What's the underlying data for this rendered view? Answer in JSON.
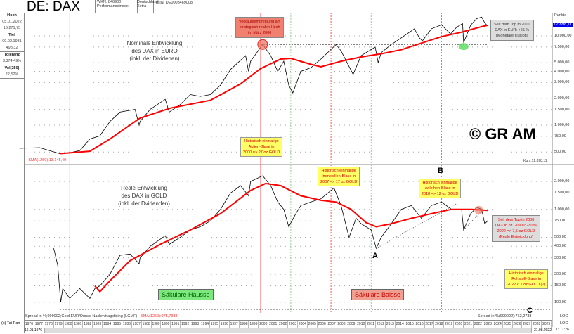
{
  "header": {
    "title": "DE: DAX",
    "wkn": "WKN: 846900",
    "type": "Performanceindex",
    "country": "Deutschland",
    "exchange": "Xetra",
    "isin": "ISIN: DE0008469008"
  },
  "side": {
    "hoch_label": "Hoch",
    "hoch_date": "05.01.2022",
    "hoch_value": "16.271,75",
    "tief_label": "Tief",
    "tief_date": "09.02.1981",
    "tief_value": "498,32",
    "toleranz_label": "Toleranz",
    "toleranz_value": "3.374,49%",
    "vol_label": "Vol(250)",
    "vol_value": "22,52%",
    "tai_pan": "(c) Tai-Pan"
  },
  "annotations": {
    "nominal": [
      "Nominale Entwicklung",
      "des DAX in EURO",
      "(inkl. der Dividenen)"
    ],
    "real": [
      "Reale Entwicklung",
      "des DAX in GOLD",
      "(inkl. der Dvidenden)"
    ],
    "sell": [
      "Verkaufsempfehlung am",
      "strategisch realen Hoch",
      "im März 2000"
    ],
    "top_eur": [
      "Seit dem Top in 2000",
      "DAX in EUR: +65 %",
      "(Monetäre Illusion)"
    ],
    "aktien": [
      "Historisch einmalige",
      "Aktien-Blase in",
      "2000 => 27 oz GOLD"
    ],
    "immo": [
      "Historisch einmalige",
      "Immobilien-Blase in",
      "2007 => 17 oz GOLD"
    ],
    "anleihen": [
      "Historisch einmalige",
      "Anleihen-Blase in",
      "2018 => 12 oz GOLD"
    ],
    "top_gold": [
      "Seit dem Top in 2000",
      "DAX in oz GOLD: -70 %",
      "2022 => 7,5 oz GOLD",
      "(Reale Entwicklung)"
    ],
    "rohstoff": [
      "Historisch einmalige",
      "Rohstoff-Blase in",
      "202? < 1 oz GOLD (?)"
    ],
    "copyright": "© GR AM",
    "hausse": "Säkulare Hausse",
    "baisse": "Säkulare Baisse",
    "A": "A",
    "B": "B",
    "C": "C",
    "sma_top": "- SMA(1250):13.145,49",
    "kurs": "Kurs:12.898,11",
    "spread_left": "Spread in %;999002;Gold EUR/Ounce Nachmittagsfixing (LGMF)",
    "sma_bottom": " - SMA(1250):975,7388",
    "spread_right": "Spread in %(999002):752,2738",
    "log1": "LOG",
    "log2": "LOG",
    "time": "T: 11:26",
    "date_start": "16.01.1976",
    "date_end": "31.08.2022",
    "punkte": "Punkte"
  },
  "chart_data": [
    {
      "type": "line",
      "title": "DAX nominal in EUR",
      "scale": "log",
      "yticks": [
        500,
        750,
        1000,
        1500,
        2000,
        3000,
        4000,
        5000,
        7500,
        10000
      ],
      "ytick_labels": [
        "500,00",
        "750,00",
        "1.000,00",
        "1.500,00",
        "2.000,00",
        "3.000,00",
        "4.000,00",
        "5.000,00",
        "7.500,00",
        "10.000,00"
      ],
      "current_label": "12.898,11",
      "series": [
        {
          "name": "DAX",
          "x": [
            1976,
            1978,
            1980,
            1981,
            1982,
            1983,
            1984,
            1985,
            1986,
            1987.5,
            1987.9,
            1988,
            1989,
            1990.5,
            1990.9,
            1992,
            1993,
            1994,
            1995,
            1996,
            1997,
            1998.5,
            1998.8,
            1999,
            2000.2,
            2001,
            2001.7,
            2002.3,
            2002.8,
            2003.2,
            2004,
            2005,
            2006,
            2007.5,
            2008,
            2009.2,
            2010,
            2011.4,
            2011.7,
            2012,
            2013,
            2014,
            2015.3,
            2015.8,
            2016.1,
            2017,
            2018,
            2018.9,
            2019.5,
            2020.1,
            2020.2,
            2020.9,
            2021.5,
            2022.0,
            2022.3,
            2022.6
          ],
          "values": [
            550,
            560,
            480,
            490,
            520,
            700,
            760,
            1100,
            1400,
            1500,
            1000,
            1100,
            1500,
            1950,
            1400,
            1700,
            2200,
            2100,
            2200,
            2800,
            4200,
            6000,
            4000,
            5200,
            8000,
            6000,
            4000,
            5200,
            2800,
            2300,
            4000,
            4400,
            5500,
            8000,
            6800,
            3700,
            6000,
            7500,
            5000,
            6500,
            8000,
            9500,
            12000,
            9500,
            8800,
            12000,
            13300,
            10500,
            12500,
            13700,
            8400,
            13200,
            15600,
            16270,
            14000,
            12898
          ]
        },
        {
          "name": "SMA(1250)",
          "x": [
            1980,
            1983,
            1985,
            1988,
            1991,
            1995,
            1998,
            2000,
            2002,
            2003,
            2005,
            2006,
            2008,
            2010,
            2012,
            2014,
            2016,
            2018,
            2020,
            2022,
            2022.6
          ],
          "values": [
            480,
            510,
            700,
            1200,
            1550,
            1900,
            2900,
            4300,
            5500,
            5600,
            4800,
            4500,
            5200,
            5800,
            6300,
            7000,
            8300,
            9800,
            11000,
            12700,
            13145
          ]
        }
      ]
    },
    {
      "type": "line",
      "title": "DAX in GOLD (spread)",
      "scale": "log",
      "yticks": [
        100,
        150,
        200,
        300,
        400,
        500,
        750,
        1000,
        1500,
        2000
      ],
      "ytick_labels": [
        "100,00",
        "150,00",
        "200,00",
        "300,00",
        "400,00",
        "500,00",
        "750,00",
        "1.000,00",
        "1.500,00",
        "2.000,00"
      ],
      "series": [
        {
          "name": "DAX/Gold",
          "x": [
            1979.4,
            1979.8,
            1980.1,
            1980.3,
            1981,
            1982,
            1983,
            1983.5,
            1984,
            1985,
            1986,
            1987,
            1987.9,
            1988,
            1989,
            1990.5,
            1990.9,
            1992,
            1993,
            1994,
            1995,
            1996,
            1997,
            1998,
            1998.8,
            1999,
            2000.2,
            2001,
            2001.7,
            2002.3,
            2002.8,
            2003.5,
            2004,
            2005,
            2006,
            2007.3,
            2008,
            2008.8,
            2009.5,
            2010,
            2011,
            2011.5,
            2012,
            2013,
            2014,
            2015,
            2016,
            2017,
            2018,
            2019,
            2020,
            2020.2,
            2020.9,
            2021.5,
            2022.0,
            2022.3,
            2022.6
          ],
          "values": [
            380,
            250,
            100,
            140,
            110,
            140,
            110,
            140,
            150,
            200,
            320,
            330,
            260,
            300,
            400,
            520,
            420,
            500,
            600,
            650,
            750,
            1000,
            1500,
            1800,
            1400,
            2000,
            2300,
            1800,
            1200,
            1000,
            650,
            900,
            1100,
            1200,
            1300,
            1700,
            1100,
            500,
            800,
            700,
            600,
            380,
            500,
            700,
            1000,
            1100,
            800,
            1100,
            1200,
            1000,
            1000,
            600,
            900,
            1050,
            1000,
            700,
            752
          ]
        },
        {
          "name": "SMA(1250)",
          "x": [
            1983.5,
            1984,
            1985,
            1987,
            1990,
            1993,
            1996,
            1999,
            2000.5,
            2002,
            2004,
            2006,
            2007.5,
            2009,
            2010.5,
            2011.5,
            2013,
            2015,
            2017,
            2019,
            2021,
            2022.6
          ],
          "values": [
            150,
            130,
            170,
            280,
            420,
            600,
            900,
            1600,
            1900,
            1800,
            1400,
            1250,
            1200,
            1000,
            720,
            650,
            700,
            800,
            900,
            1000,
            1000,
            975
          ]
        }
      ]
    }
  ],
  "years": [
    "1976",
    "1977",
    "1978",
    "1979",
    "1980",
    "1981",
    "1982",
    "1983",
    "1984",
    "1985",
    "1986",
    "1987",
    "1988",
    "1989",
    "1990",
    "1991",
    "1992",
    "1993",
    "1994",
    "1995",
    "1996",
    "1997",
    "1998",
    "1999",
    "2000",
    "2001",
    "2002",
    "2003",
    "2004",
    "2005",
    "2006",
    "2007",
    "2008",
    "2009",
    "2010",
    "2011",
    "2012",
    "2013",
    "2014",
    "2015",
    "2016",
    "2017",
    "2018",
    "2019",
    "2020",
    "2021",
    "2022",
    "2023",
    "2024",
    "2025",
    "2026",
    "2027",
    "2028",
    "2029"
  ],
  "colors": {
    "price": "#000000",
    "sma": "#ff0000",
    "green": "#5cd65c",
    "salmon": "#f08070"
  }
}
